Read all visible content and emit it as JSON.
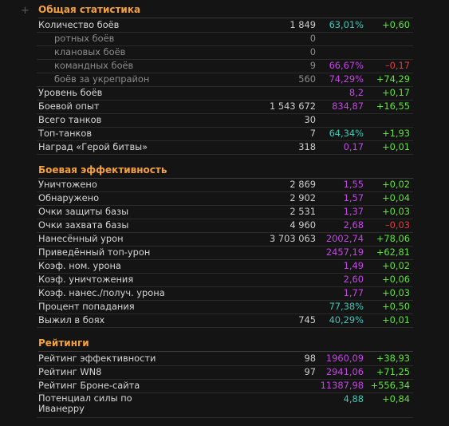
{
  "general": {
    "title": "Общая статистика",
    "rows": [
      {
        "label": "Количество боёв",
        "value": "1 849",
        "pct": "63,01%",
        "pct_color": "teal",
        "delta": "+0,60",
        "delta_color": "green"
      },
      {
        "label": "ротных боёв",
        "value": "0",
        "pct": "",
        "pct_color": "",
        "delta": "",
        "delta_color": "",
        "sub": true
      },
      {
        "label": "клановых боёв",
        "value": "0",
        "pct": "",
        "pct_color": "",
        "delta": "",
        "delta_color": "",
        "sub": true
      },
      {
        "label": "командных боёв",
        "value": "9",
        "pct": "66,67%",
        "pct_color": "purple",
        "delta": "–0,17",
        "delta_color": "red",
        "sub": true
      },
      {
        "label": "боёв за укрепрайон",
        "value": "560",
        "pct": "74,29%",
        "pct_color": "purple",
        "delta": "+74,29",
        "delta_color": "green",
        "sub": true
      },
      {
        "label": "Уровень боёв",
        "value": "",
        "pct": "8,2",
        "pct_color": "purple",
        "delta": "+0,17",
        "delta_color": "green"
      },
      {
        "label": "Боевой опыт",
        "value": "1 543 672",
        "pct": "834,87",
        "pct_color": "purple",
        "delta": "+16,55",
        "delta_color": "green"
      },
      {
        "label": "Всего танков",
        "value": "30",
        "pct": "",
        "pct_color": "",
        "delta": "",
        "delta_color": ""
      },
      {
        "label": "Топ-танков",
        "value": "7",
        "pct": "64,34%",
        "pct_color": "teal",
        "delta": "+1,93",
        "delta_color": "green"
      },
      {
        "label": "Наград «Герой битвы»",
        "value": "318",
        "pct": "0,17",
        "pct_color": "purple",
        "delta": "+0,01",
        "delta_color": "green"
      }
    ]
  },
  "efficiency": {
    "title": "Боевая эффективность",
    "rows": [
      {
        "label": "Уничтожено",
        "value": "2 869",
        "pct": "1,55",
        "pct_color": "purple",
        "delta": "+0,02",
        "delta_color": "green"
      },
      {
        "label": "Обнаружено",
        "value": "2 902",
        "pct": "1,57",
        "pct_color": "purple",
        "delta": "+0,04",
        "delta_color": "green"
      },
      {
        "label": "Очки защиты базы",
        "value": "2 531",
        "pct": "1,37",
        "pct_color": "purple",
        "delta": "+0,03",
        "delta_color": "green"
      },
      {
        "label": "Очки захвата базы",
        "value": "4 960",
        "pct": "2,68",
        "pct_color": "purple",
        "delta": "–0,03",
        "delta_color": "red"
      },
      {
        "label": "Нанесённый урон",
        "value": "3 703 063",
        "pct": "2002,74",
        "pct_color": "purple",
        "delta": "+78,06",
        "delta_color": "green"
      },
      {
        "label": "Приведённый топ-урон",
        "value": "",
        "pct": "2457,19",
        "pct_color": "purple",
        "delta": "+62,81",
        "delta_color": "green"
      },
      {
        "label": "Коэф. ном. урона",
        "value": "",
        "pct": "1,49",
        "pct_color": "purple",
        "delta": "+0,02",
        "delta_color": "green"
      },
      {
        "label": "Коэф. уничтожения",
        "value": "",
        "pct": "2,60",
        "pct_color": "purple",
        "delta": "+0,06",
        "delta_color": "green"
      },
      {
        "label": "Коэф. нанес./получ. урона",
        "value": "",
        "pct": "1,77",
        "pct_color": "purple",
        "delta": "+0,03",
        "delta_color": "green"
      },
      {
        "label": "Процент попадания",
        "value": "",
        "pct": "77,38%",
        "pct_color": "teal",
        "delta": "+0,50",
        "delta_color": "green"
      },
      {
        "label": "Выжил в боях",
        "value": "745",
        "pct": "40,29%",
        "pct_color": "teal",
        "delta": "+0,01",
        "delta_color": "green"
      }
    ]
  },
  "ratings": {
    "title": "Рейтинги",
    "rows": [
      {
        "label": "Рейтинг эффективности",
        "value": "98",
        "pct": "1960,09",
        "pct_color": "purple",
        "delta": "+38,93",
        "delta_color": "green"
      },
      {
        "label": "Рейтинг WN8",
        "value": "97",
        "pct": "2941,06",
        "pct_color": "purple",
        "delta": "+71,25",
        "delta_color": "green"
      },
      {
        "label": "Рейтинг Броне-сайта",
        "value": "",
        "pct": "11387,98",
        "pct_color": "purple",
        "delta": "+556,34",
        "delta_color": "green"
      },
      {
        "label": "Потенциал силы по Иванерру",
        "value": "",
        "pct": "4,88",
        "pct_color": "teal",
        "delta": "+0,84",
        "delta_color": "green",
        "tall": true
      }
    ]
  },
  "expand_glyph": "+"
}
